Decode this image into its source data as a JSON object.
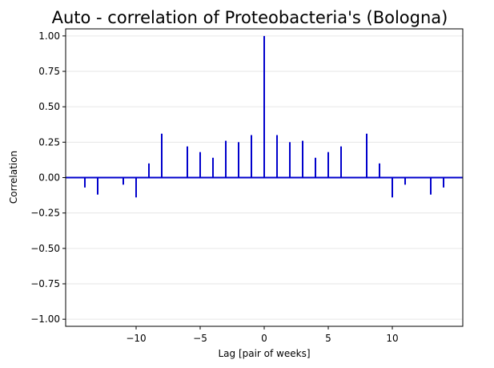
{
  "chart_data": {
    "type": "bar",
    "subtype": "stem",
    "title": "Auto - correlation of Proteobacteria's (Bologna)",
    "xlabel": "Lag [pair of weeks]",
    "ylabel": "Correlation",
    "xlim": [
      -15.5,
      15.5
    ],
    "ylim": [
      -1.05,
      1.05
    ],
    "x_ticks": [
      -10,
      -5,
      0,
      5,
      10
    ],
    "x_tick_labels": [
      "−10",
      "−5",
      "0",
      "5",
      "10"
    ],
    "y_ticks": [
      -1.0,
      -0.75,
      -0.5,
      -0.25,
      0.0,
      0.25,
      0.5,
      0.75,
      1.0
    ],
    "y_tick_labels": [
      "−1.00",
      "−0.75",
      "−0.50",
      "−0.25",
      "0.00",
      "0.25",
      "0.50",
      "0.75",
      "1.00"
    ],
    "grid": "horizontal",
    "lags": [
      -14,
      -13,
      -11,
      -10,
      -9,
      -8,
      -6,
      -5,
      -4,
      -3,
      -2,
      -1,
      0,
      1,
      2,
      3,
      4,
      5,
      6,
      8,
      9,
      10,
      11,
      13,
      14
    ],
    "values": [
      -0.07,
      -0.12,
      -0.05,
      -0.14,
      0.1,
      0.31,
      0.22,
      0.18,
      0.14,
      0.26,
      0.25,
      0.3,
      1.0,
      0.3,
      0.25,
      0.26,
      0.14,
      0.18,
      0.22,
      0.31,
      0.1,
      -0.14,
      -0.05,
      -0.12,
      -0.07
    ],
    "colors": {
      "stem": "#0000cc",
      "baseline": "#0000cc",
      "grid": "#e6e6e6",
      "axes": "#000000"
    }
  }
}
